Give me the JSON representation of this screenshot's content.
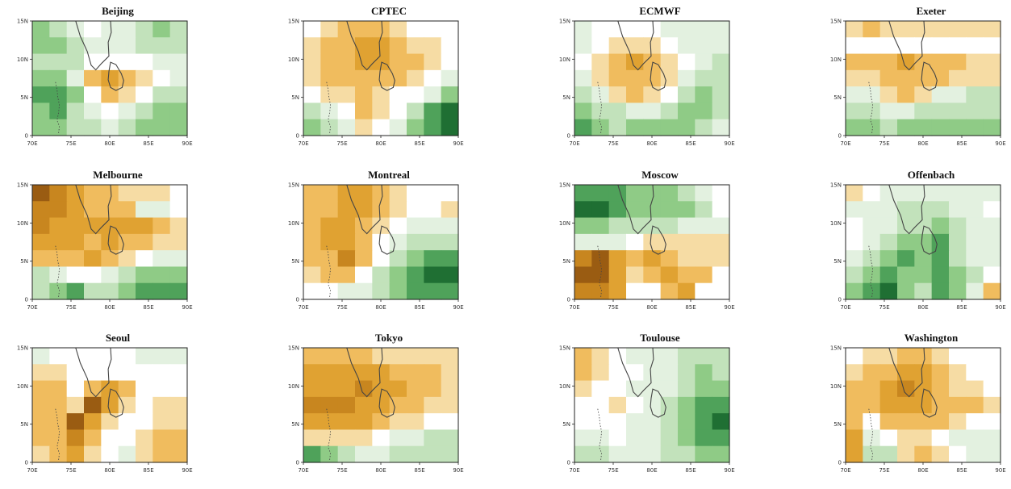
{
  "figure": {
    "panel_titles": [
      "Beijing",
      "CPTEC",
      "ECMWF",
      "Exeter",
      "Melbourne",
      "Montreal",
      "Moscow",
      "Offenbach",
      "Seoul",
      "Tokyo",
      "Toulouse",
      "Washington"
    ],
    "x_tick_labels": [
      "70E",
      "75E",
      "80E",
      "85E",
      "90E"
    ],
    "y_tick_labels": [
      "0",
      "5N",
      "10N",
      "15N"
    ]
  },
  "colors": {
    "green_1": "#e3f1e0",
    "green_2": "#c2e2bb",
    "green_3": "#8fcb86",
    "green_4": "#4fa25a",
    "green_5": "#1f6f33",
    "green_6": "#0b4a1e",
    "brown_1": "#f6dca4",
    "brown_2": "#f0bc5e",
    "brown_3": "#e0a232",
    "brown_4": "#c8861f",
    "brown_5": "#9a5c12",
    "brown_6": "#6b3a0a",
    "neutral": "#ffffff",
    "coast": "#444444"
  },
  "chart_data": [
    {
      "type": "heatmap",
      "title": "Beijing",
      "xlim": [
        70,
        90
      ],
      "ylim": [
        0,
        15
      ],
      "x_ticks": [
        "70E",
        "75E",
        "80E",
        "85E",
        "90E"
      ],
      "y_ticks": [
        "0",
        "5N",
        "10N",
        "15N"
      ],
      "z": [
        [
          3,
          2,
          1,
          0,
          1,
          1,
          2,
          3,
          2
        ],
        [
          3,
          3,
          2,
          1,
          1,
          1,
          2,
          2,
          2
        ],
        [
          2,
          2,
          2,
          0,
          0,
          0,
          0,
          1,
          1
        ],
        [
          3,
          3,
          1,
          -2,
          -3,
          -2,
          -1,
          0,
          1
        ],
        [
          4,
          4,
          3,
          0,
          -2,
          -1,
          0,
          2,
          2
        ],
        [
          3,
          4,
          2,
          1,
          0,
          1,
          2,
          3,
          3
        ],
        [
          3,
          3,
          2,
          2,
          1,
          2,
          3,
          3,
          3
        ]
      ]
    },
    {
      "type": "heatmap",
      "title": "CPTEC",
      "xlim": [
        70,
        90
      ],
      "ylim": [
        0,
        15
      ],
      "x_ticks": [
        "70E",
        "75E",
        "80E",
        "85E",
        "90E"
      ],
      "y_ticks": [
        "0",
        "5N",
        "10N",
        "15N"
      ],
      "z": [
        [
          0,
          -1,
          -2,
          -2,
          -2,
          -1,
          0,
          0,
          0
        ],
        [
          -1,
          -2,
          -2,
          -3,
          -3,
          -2,
          -1,
          -1,
          0
        ],
        [
          -1,
          -2,
          -2,
          -3,
          -3,
          -2,
          -2,
          -1,
          0
        ],
        [
          -1,
          -2,
          -2,
          -2,
          -2,
          -2,
          -1,
          0,
          1
        ],
        [
          0,
          -1,
          -1,
          -2,
          -1,
          0,
          0,
          1,
          3
        ],
        [
          2,
          1,
          0,
          -2,
          -1,
          0,
          2,
          4,
          5
        ],
        [
          3,
          2,
          1,
          -1,
          0,
          1,
          3,
          4,
          5
        ]
      ]
    },
    {
      "type": "heatmap",
      "title": "ECMWF",
      "xlim": [
        70,
        90
      ],
      "ylim": [
        0,
        15
      ],
      "x_ticks": [
        "70E",
        "75E",
        "80E",
        "85E",
        "90E"
      ],
      "y_ticks": [
        "0",
        "5N",
        "10N",
        "15N"
      ],
      "z": [
        [
          1,
          0,
          0,
          0,
          0,
          1,
          1,
          1,
          1
        ],
        [
          1,
          0,
          -1,
          -1,
          -1,
          0,
          1,
          1,
          1
        ],
        [
          0,
          -1,
          -2,
          -3,
          -2,
          -1,
          0,
          1,
          2
        ],
        [
          1,
          -1,
          -2,
          -2,
          -2,
          -1,
          1,
          2,
          2
        ],
        [
          2,
          1,
          -1,
          -2,
          -1,
          0,
          2,
          3,
          2
        ],
        [
          3,
          2,
          2,
          1,
          1,
          2,
          3,
          3,
          2
        ],
        [
          4,
          3,
          2,
          3,
          3,
          3,
          3,
          2,
          1
        ]
      ]
    },
    {
      "type": "heatmap",
      "title": "Exeter",
      "xlim": [
        70,
        90
      ],
      "ylim": [
        0,
        15
      ],
      "x_ticks": [
        "70E",
        "75E",
        "80E",
        "85E",
        "90E"
      ],
      "y_ticks": [
        "0",
        "5N",
        "10N",
        "15N"
      ],
      "z": [
        [
          -1,
          -2,
          -1,
          -1,
          -1,
          -1,
          -1,
          -1,
          -1
        ],
        [
          0,
          0,
          0,
          0,
          0,
          0,
          0,
          0,
          0
        ],
        [
          -2,
          -2,
          -2,
          -3,
          -2,
          -2,
          -2,
          -1,
          -1
        ],
        [
          -1,
          -1,
          -2,
          -2,
          -2,
          -2,
          -1,
          -1,
          -1
        ],
        [
          1,
          1,
          -1,
          -2,
          -1,
          1,
          1,
          2,
          2
        ],
        [
          2,
          2,
          1,
          1,
          2,
          2,
          2,
          2,
          2
        ],
        [
          3,
          3,
          2,
          3,
          3,
          3,
          3,
          3,
          3
        ]
      ]
    },
    {
      "type": "heatmap",
      "title": "Melbourne",
      "xlim": [
        70,
        90
      ],
      "ylim": [
        0,
        15
      ],
      "x_ticks": [
        "70E",
        "75E",
        "80E",
        "85E",
        "90E"
      ],
      "y_ticks": [
        "0",
        "5N",
        "10N",
        "15N"
      ],
      "z": [
        [
          -5,
          -4,
          -3,
          -2,
          -2,
          -1,
          -1,
          -1,
          0
        ],
        [
          -4,
          -4,
          -3,
          -2,
          -2,
          -2,
          1,
          1,
          0
        ],
        [
          -4,
          -3,
          -3,
          -3,
          -3,
          -3,
          -3,
          -2,
          -1
        ],
        [
          -3,
          -3,
          -3,
          -2,
          -3,
          -2,
          -2,
          -1,
          -1
        ],
        [
          -2,
          -2,
          -2,
          -3,
          -2,
          -1,
          0,
          1,
          1
        ],
        [
          2,
          1,
          0,
          0,
          1,
          2,
          3,
          3,
          3
        ],
        [
          2,
          3,
          4,
          2,
          2,
          3,
          4,
          4,
          4
        ]
      ]
    },
    {
      "type": "heatmap",
      "title": "Montreal",
      "xlim": [
        70,
        90
      ],
      "ylim": [
        0,
        15
      ],
      "x_ticks": [
        "70E",
        "75E",
        "80E",
        "85E",
        "90E"
      ],
      "y_ticks": [
        "0",
        "5N",
        "10N",
        "15N"
      ],
      "z": [
        [
          -2,
          -2,
          -3,
          -3,
          -2,
          -1,
          0,
          0,
          0
        ],
        [
          -2,
          -2,
          -3,
          -3,
          -2,
          -1,
          0,
          0,
          -1
        ],
        [
          -2,
          -3,
          -3,
          -2,
          -1,
          0,
          1,
          1,
          1
        ],
        [
          -2,
          -3,
          -3,
          -2,
          0,
          1,
          2,
          2,
          2
        ],
        [
          -2,
          -2,
          -4,
          -2,
          0,
          2,
          3,
          4,
          4
        ],
        [
          -1,
          -2,
          -2,
          0,
          2,
          3,
          4,
          5,
          5
        ],
        [
          0,
          0,
          1,
          1,
          2,
          3,
          4,
          4,
          4
        ]
      ]
    },
    {
      "type": "heatmap",
      "title": "Moscow",
      "xlim": [
        70,
        90
      ],
      "ylim": [
        0,
        15
      ],
      "x_ticks": [
        "70E",
        "75E",
        "80E",
        "85E",
        "90E"
      ],
      "y_ticks": [
        "0",
        "5N",
        "10N",
        "15N"
      ],
      "z": [
        [
          4,
          4,
          4,
          3,
          3,
          3,
          2,
          1,
          0
        ],
        [
          5,
          5,
          4,
          3,
          3,
          3,
          3,
          2,
          0
        ],
        [
          3,
          3,
          2,
          2,
          2,
          2,
          1,
          1,
          1
        ],
        [
          1,
          1,
          1,
          0,
          -1,
          -1,
          -1,
          -1,
          -1
        ],
        [
          -4,
          -5,
          -3,
          -2,
          -3,
          -2,
          -1,
          -1,
          -1
        ],
        [
          -5,
          -5,
          -3,
          -1,
          -2,
          -3,
          -2,
          -2,
          0
        ],
        [
          -4,
          -4,
          -3,
          0,
          0,
          -2,
          -3,
          0,
          0
        ]
      ]
    },
    {
      "type": "heatmap",
      "title": "Offenbach",
      "xlim": [
        70,
        90
      ],
      "ylim": [
        0,
        15
      ],
      "x_ticks": [
        "70E",
        "75E",
        "80E",
        "85E",
        "90E"
      ],
      "y_ticks": [
        "0",
        "5N",
        "10N",
        "15N"
      ],
      "z": [
        [
          -1,
          0,
          1,
          1,
          1,
          1,
          1,
          1,
          1
        ],
        [
          1,
          1,
          1,
          2,
          2,
          2,
          1,
          1,
          0
        ],
        [
          0,
          1,
          1,
          2,
          2,
          3,
          2,
          1,
          1
        ],
        [
          0,
          1,
          2,
          3,
          3,
          4,
          2,
          1,
          1
        ],
        [
          1,
          2,
          3,
          4,
          3,
          4,
          2,
          1,
          1
        ],
        [
          2,
          3,
          4,
          3,
          3,
          4,
          3,
          2,
          0
        ],
        [
          3,
          4,
          5,
          3,
          2,
          4,
          3,
          1,
          -2
        ]
      ]
    },
    {
      "type": "heatmap",
      "title": "Seoul",
      "xlim": [
        70,
        90
      ],
      "ylim": [
        0,
        15
      ],
      "x_ticks": [
        "70E",
        "75E",
        "80E",
        "85E",
        "90E"
      ],
      "y_ticks": [
        "0",
        "5N",
        "10N",
        "15N"
      ],
      "z": [
        [
          1,
          0,
          0,
          0,
          0,
          0,
          1,
          1,
          1
        ],
        [
          -1,
          -1,
          0,
          0,
          0,
          0,
          0,
          0,
          0
        ],
        [
          -2,
          -2,
          0,
          -2,
          -3,
          -2,
          0,
          0,
          0
        ],
        [
          -2,
          -2,
          -1,
          -5,
          -3,
          -1,
          0,
          -1,
          -1
        ],
        [
          -2,
          -2,
          -5,
          -3,
          -1,
          0,
          0,
          -1,
          -1
        ],
        [
          -2,
          -2,
          -4,
          -2,
          0,
          0,
          -1,
          -2,
          -2
        ],
        [
          -1,
          -2,
          -3,
          -1,
          0,
          1,
          -1,
          -2,
          -2
        ]
      ]
    },
    {
      "type": "heatmap",
      "title": "Tokyo",
      "xlim": [
        70,
        90
      ],
      "ylim": [
        0,
        15
      ],
      "x_ticks": [
        "70E",
        "75E",
        "80E",
        "85E",
        "90E"
      ],
      "y_ticks": [
        "0",
        "5N",
        "10N",
        "15N"
      ],
      "z": [
        [
          -2,
          -2,
          -2,
          -2,
          -1,
          -1,
          -1,
          -1,
          -1
        ],
        [
          -3,
          -3,
          -3,
          -3,
          -3,
          -2,
          -2,
          -2,
          -1
        ],
        [
          -3,
          -3,
          -3,
          -4,
          -3,
          -3,
          -2,
          -2,
          -1
        ],
        [
          -4,
          -4,
          -4,
          -3,
          -3,
          -2,
          -2,
          -1,
          -1
        ],
        [
          -3,
          -3,
          -3,
          -3,
          -2,
          -1,
          -1,
          0,
          0
        ],
        [
          -1,
          -1,
          -1,
          -1,
          0,
          1,
          1,
          2,
          2
        ],
        [
          4,
          3,
          2,
          1,
          1,
          2,
          2,
          2,
          2
        ]
      ]
    },
    {
      "type": "heatmap",
      "title": "Toulouse",
      "xlim": [
        70,
        90
      ],
      "ylim": [
        0,
        15
      ],
      "x_ticks": [
        "70E",
        "75E",
        "80E",
        "85E",
        "90E"
      ],
      "y_ticks": [
        "0",
        "5N",
        "10N",
        "15N"
      ],
      "z": [
        [
          -2,
          -1,
          0,
          1,
          1,
          1,
          2,
          2,
          2
        ],
        [
          -2,
          -1,
          0,
          0,
          1,
          1,
          2,
          3,
          2
        ],
        [
          -1,
          0,
          0,
          1,
          1,
          1,
          2,
          3,
          3
        ],
        [
          0,
          0,
          -1,
          0,
          1,
          2,
          3,
          4,
          4
        ],
        [
          0,
          0,
          0,
          1,
          1,
          2,
          3,
          4,
          5
        ],
        [
          1,
          1,
          0,
          1,
          1,
          2,
          3,
          4,
          4
        ],
        [
          2,
          2,
          1,
          1,
          1,
          2,
          2,
          3,
          3
        ]
      ]
    },
    {
      "type": "heatmap",
      "title": "Washington",
      "xlim": [
        70,
        90
      ],
      "ylim": [
        0,
        15
      ],
      "x_ticks": [
        "70E",
        "75E",
        "80E",
        "85E",
        "90E"
      ],
      "y_ticks": [
        "0",
        "5N",
        "10N",
        "15N"
      ],
      "z": [
        [
          0,
          -1,
          -1,
          -2,
          -2,
          -1,
          0,
          0,
          0
        ],
        [
          -1,
          -2,
          -2,
          -3,
          -3,
          -2,
          -1,
          0,
          0
        ],
        [
          -2,
          -2,
          -3,
          -4,
          -3,
          -2,
          -1,
          -1,
          0
        ],
        [
          -2,
          -2,
          -3,
          -3,
          -3,
          -2,
          -2,
          -2,
          -1
        ],
        [
          -2,
          0,
          -2,
          -2,
          -2,
          -2,
          -1,
          0,
          0
        ],
        [
          -3,
          1,
          0,
          -1,
          -1,
          0,
          1,
          1,
          1
        ],
        [
          -3,
          2,
          2,
          -1,
          -2,
          -1,
          0,
          1,
          1
        ]
      ]
    }
  ]
}
